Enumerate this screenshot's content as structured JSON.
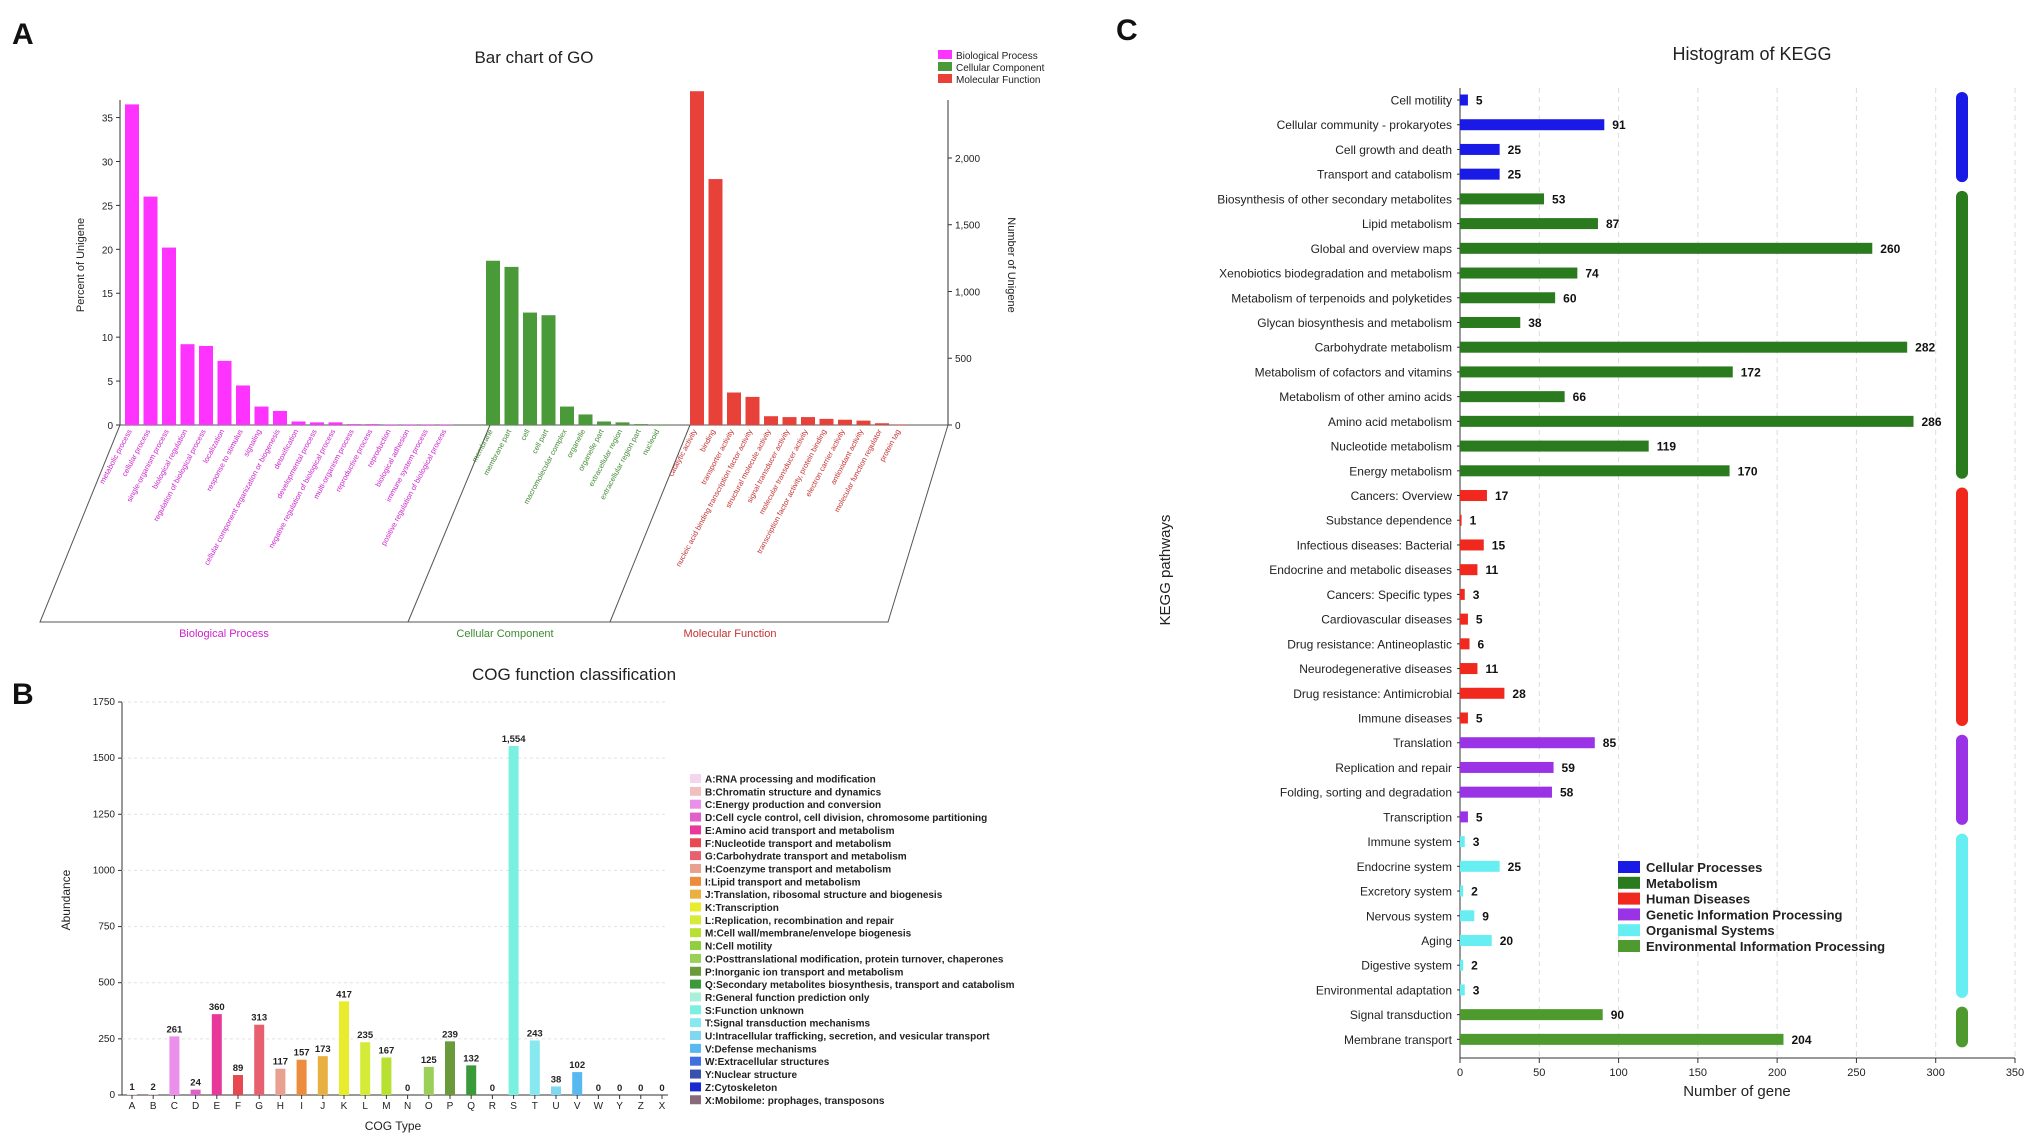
{
  "panels": {
    "a_letter": "A",
    "b_letter": "B",
    "c_letter": "C"
  },
  "chart_data": [
    {
      "id": "go",
      "type": "bar",
      "title": "Bar chart of GO",
      "ylabel": "Percent of Unigene",
      "y2label": "Number of Unigene",
      "ylim": [
        0,
        37
      ],
      "yticks": [
        "0",
        "5",
        "10",
        "15",
        "20",
        "25",
        "30",
        "35"
      ],
      "y2ticks": [
        "0",
        "500",
        "1,000",
        "1,500",
        "2,000"
      ],
      "legend": [
        {
          "name": "Biological Process",
          "color": "#ff33ff"
        },
        {
          "name": "Cellular Component",
          "color": "#4a9a3a"
        },
        {
          "name": "Molecular Function",
          "color": "#e8413a"
        }
      ],
      "groups": [
        {
          "name": "Biological Process",
          "color": "#ff33ff",
          "label_color": "#cc22cc",
          "categories": [
            "metabolic process",
            "cellular process",
            "single-organism process",
            "biological regulation",
            "regulation of biological process",
            "localization",
            "response to stimulus",
            "signaling",
            "cellular component organization or biogenesis",
            "detoxification",
            "developmental process",
            "negative regulation of biological process",
            "multi-organism process",
            "reproductive process",
            "reproduction",
            "biological adhesion",
            "immune system process",
            "positive regulation of biological process"
          ],
          "values": [
            36.5,
            26,
            20.2,
            9.2,
            9,
            7.3,
            4.5,
            2.1,
            1.6,
            0.4,
            0.3,
            0.3,
            0.1,
            0.1,
            0.05,
            0.05,
            0.05,
            0.05
          ]
        },
        {
          "name": "Cellular Component",
          "color": "#4a9a3a",
          "label_color": "#3f8a32",
          "categories": [
            "membrane",
            "membrane part",
            "cell",
            "cell part",
            "macromolecular complex",
            "organelle",
            "organelle part",
            "extracellular region",
            "extracellular region part",
            "nucleoid"
          ],
          "values": [
            18.7,
            18,
            12.8,
            12.5,
            2.1,
            1.2,
            0.4,
            0.3,
            0.1,
            0.05
          ]
        },
        {
          "name": "Molecular Function",
          "color": "#e8413a",
          "label_color": "#c43030",
          "categories": [
            "catalytic activity",
            "binding",
            "transporter activity",
            "nucleic acid binding transcription factor activity",
            "structural molecule activity",
            "signal transducer activity",
            "molecular transducer activity",
            "transcription factor activity, protein binding",
            "electron carrier activity",
            "antioxidant activity",
            "molecular function regulator",
            "protein tag"
          ],
          "values": [
            38,
            28,
            3.7,
            3.2,
            1,
            0.9,
            0.9,
            0.7,
            0.6,
            0.5,
            0.2,
            0.05
          ]
        }
      ]
    },
    {
      "id": "cog",
      "type": "bar",
      "title": "COG function classification",
      "xlabel": "COG Type",
      "ylabel": "Abundance",
      "ylim": [
        0,
        1750
      ],
      "yticks": [
        "0",
        "250",
        "500",
        "750",
        "1000",
        "1250",
        "1500",
        "1750"
      ],
      "categories": [
        "A",
        "B",
        "C",
        "D",
        "E",
        "F",
        "G",
        "H",
        "I",
        "J",
        "K",
        "L",
        "M",
        "N",
        "O",
        "P",
        "Q",
        "R",
        "S",
        "T",
        "U",
        "V",
        "W",
        "Y",
        "Z",
        "X"
      ],
      "values": [
        1,
        2,
        261,
        24,
        360,
        89,
        313,
        117,
        157,
        173,
        417,
        235,
        167,
        0,
        125,
        239,
        132,
        0,
        1554,
        243,
        38,
        102,
        0,
        0,
        0,
        0
      ],
      "value_labels": [
        "1",
        "2",
        "261",
        "24",
        "360",
        "89",
        "313",
        "117",
        "157",
        "173",
        "417",
        "235",
        "167",
        "0",
        "125",
        "239",
        "132",
        "0",
        "1,554",
        "243",
        "38",
        "102",
        "0",
        "0",
        "0",
        "0"
      ],
      "colors": [
        "#f3d5ef",
        "#f0c0c0",
        "#ea90ea",
        "#e060c8",
        "#e8389a",
        "#e84850",
        "#e86070",
        "#e8a090",
        "#ec8c3c",
        "#e8b040",
        "#e8ec2c",
        "#d4ec38",
        "#b8e030",
        "#90d040",
        "#9ad05a",
        "#6a9a3a",
        "#3a9a3a",
        "#a8f0d8",
        "#7af0e0",
        "#88e8f0",
        "#80d8f0",
        "#58b8f0",
        "#4070e0",
        "#3a50b0",
        "#1a2ad0",
        "#8a6a7a"
      ],
      "legend": [
        "A:RNA processing and modification",
        "B:Chromatin structure and dynamics",
        "C:Energy production and conversion",
        "D:Cell cycle control, cell division, chromosome partitioning",
        "E:Amino acid transport and metabolism",
        "F:Nucleotide transport and metabolism",
        "G:Carbohydrate transport and metabolism",
        "H:Coenzyme transport and metabolism",
        "I:Lipid transport and metabolism",
        "J:Translation, ribosomal structure and biogenesis",
        "K:Transcription",
        "L:Replication, recombination and repair",
        "M:Cell wall/membrane/envelope biogenesis",
        "N:Cell motility",
        "O:Posttranslational modification, protein turnover, chaperones",
        "P:Inorganic ion transport and metabolism",
        "Q:Secondary metabolites biosynthesis, transport and catabolism",
        "R:General function prediction only",
        "S:Function unknown",
        "T:Signal transduction mechanisms",
        "U:Intracellular trafficking, secretion, and vesicular transport",
        "V:Defense mechanisms",
        "W:Extracellular structures",
        "Y:Nuclear structure",
        "Z:Cytoskeleton",
        "X:Mobilome: prophages, transposons"
      ]
    },
    {
      "id": "kegg",
      "type": "bar",
      "orientation": "horizontal",
      "title": "Histogram of KEGG",
      "xlabel": "Number of gene",
      "ylabel": "KEGG pathways",
      "xlim": [
        0,
        350
      ],
      "xticks": [
        "0",
        "50",
        "100",
        "150",
        "200",
        "250",
        "300",
        "350"
      ],
      "categories": [
        "Cell motility",
        "Cellular community - prokaryotes",
        "Cell growth and death",
        "Transport and catabolism",
        "Biosynthesis of other secondary metabolites",
        "Lipid metabolism",
        "Global and overview maps",
        "Xenobiotics biodegradation and metabolism",
        "Metabolism of terpenoids and polyketides",
        "Glycan biosynthesis and metabolism",
        "Carbohydrate metabolism",
        "Metabolism of cofactors and vitamins",
        "Metabolism of other amino acids",
        "Amino acid metabolism",
        "Nucleotide metabolism",
        "Energy metabolism",
        "Cancers: Overview",
        "Substance dependence",
        "Infectious diseases: Bacterial",
        "Endocrine and metabolic diseases",
        "Cancers: Specific types",
        "Cardiovascular diseases",
        "Drug resistance: Antineoplastic",
        "Neurodegenerative diseases",
        "Drug resistance: Antimicrobial",
        "Immune diseases",
        "Translation",
        "Replication and repair",
        "Folding, sorting and degradation",
        "Transcription",
        "Immune system",
        "Endocrine system",
        "Excretory system",
        "Nervous system",
        "Aging",
        "Digestive system",
        "Environmental adaptation",
        "Signal transduction",
        "Membrane transport"
      ],
      "values": [
        5,
        91,
        25,
        25,
        53,
        87,
        260,
        74,
        60,
        38,
        282,
        172,
        66,
        286,
        119,
        170,
        17,
        1,
        15,
        11,
        3,
        5,
        6,
        11,
        28,
        5,
        85,
        59,
        58,
        5,
        3,
        25,
        2,
        9,
        20,
        2,
        3,
        90,
        204
      ],
      "groups": [
        0,
        0,
        0,
        0,
        1,
        1,
        1,
        1,
        1,
        1,
        1,
        1,
        1,
        1,
        1,
        1,
        2,
        2,
        2,
        2,
        2,
        2,
        2,
        2,
        2,
        2,
        3,
        3,
        3,
        3,
        4,
        4,
        4,
        4,
        4,
        4,
        4,
        5,
        5
      ],
      "legend": [
        {
          "name": "Cellular Processes",
          "color": "#1a1ae6"
        },
        {
          "name": "Metabolism",
          "color": "#2a7a1e"
        },
        {
          "name": "Human Diseases",
          "color": "#f0281e"
        },
        {
          "name": "Genetic Information Processing",
          "color": "#9a32e6"
        },
        {
          "name": "Organismal Systems",
          "color": "#66eef2"
        },
        {
          "name": "Environmental Information Processing",
          "color": "#4e9a2e"
        }
      ]
    }
  ]
}
